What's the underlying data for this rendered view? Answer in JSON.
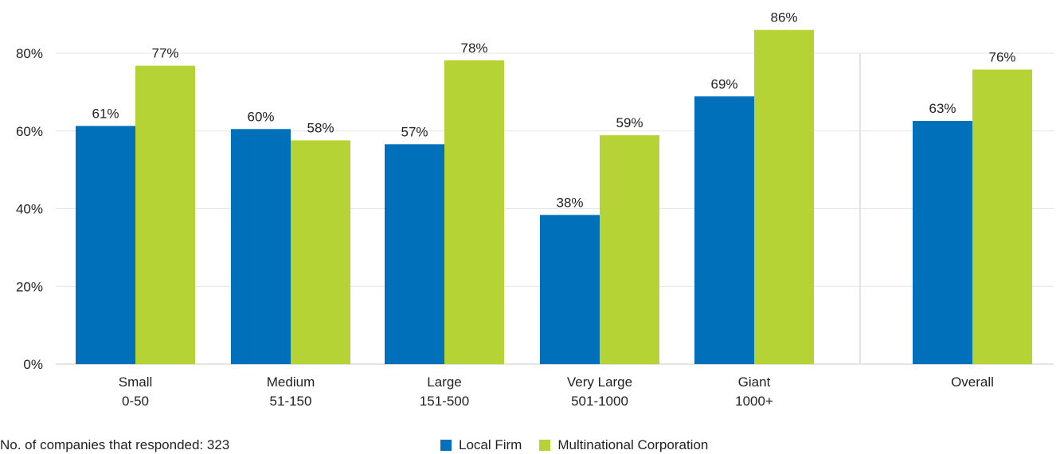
{
  "chart_data": {
    "type": "bar",
    "categories": [
      [
        "Small",
        "0-50"
      ],
      [
        "Medium",
        "51-150"
      ],
      [
        "Large",
        "151-500"
      ],
      [
        "Very Large",
        "501-1000"
      ],
      [
        "Giant",
        "1000+"
      ],
      [
        "Overall"
      ]
    ],
    "series": [
      {
        "name": "Local Firm",
        "color": "#0070BA",
        "values": [
          61.3,
          60.5,
          56.6,
          38.4,
          68.9,
          62.6
        ],
        "labels": [
          "61%",
          "60%",
          "57%",
          "38%",
          "69%",
          "63%"
        ]
      },
      {
        "name": "Multinational Corporation",
        "color": "#B5D334",
        "values": [
          76.8,
          57.6,
          78.2,
          58.9,
          86.0,
          75.8
        ],
        "labels": [
          "77%",
          "58%",
          "78%",
          "59%",
          "86%",
          "76%"
        ]
      }
    ],
    "yticks": [
      "0%",
      "20%",
      "40%",
      "60%",
      "80%"
    ],
    "ytick_values": [
      0,
      20,
      40,
      60,
      80
    ],
    "ylim": [
      0,
      80
    ],
    "title": "",
    "xlabel": "",
    "ylabel": "",
    "grid": true,
    "legend_position": "bottom-center",
    "separator_before_category": 5
  },
  "footnote": "No. of companies that responded: 323"
}
